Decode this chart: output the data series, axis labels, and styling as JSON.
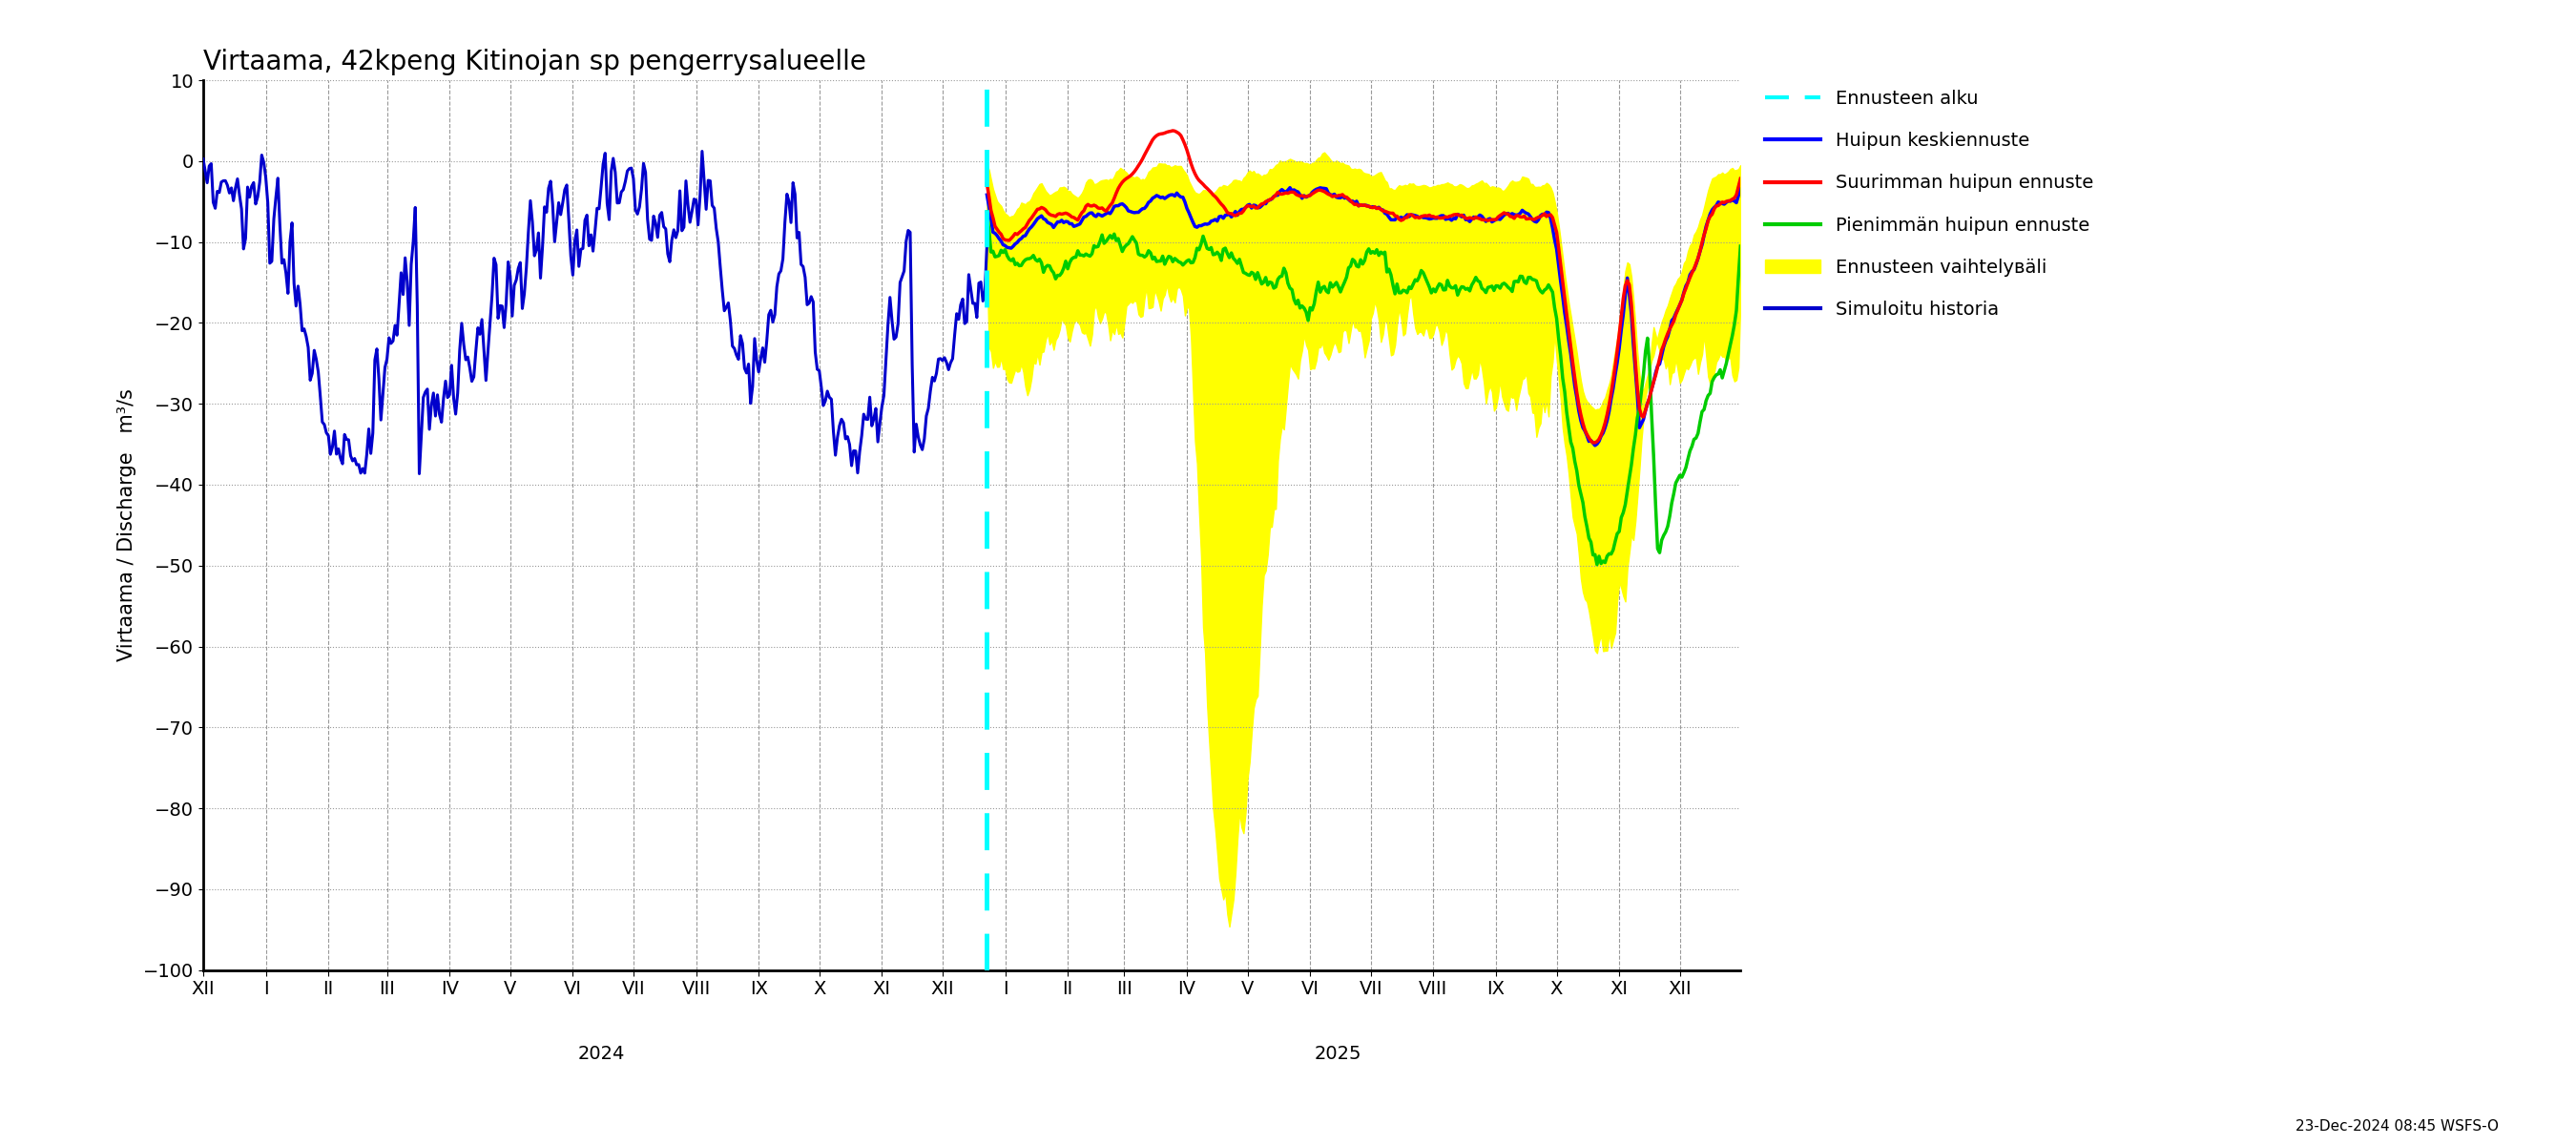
{
  "title": "Virtaama, 42kpeng Kitinojan sp pengerrysalueelle",
  "ylabel_left": "Virtaama / Discharge   m³/s",
  "ylim": [
    -100,
    10
  ],
  "yticks": [
    10,
    0,
    -10,
    -20,
    -30,
    -40,
    -50,
    -60,
    -70,
    -80,
    -90,
    -100
  ],
  "timestamp_label": "23-Dec-2024 08:45 WSFS-O",
  "background_color": "#ffffff",
  "title_fontsize": 20,
  "label_fontsize": 15,
  "tick_fontsize": 14,
  "legend_fontsize": 14
}
